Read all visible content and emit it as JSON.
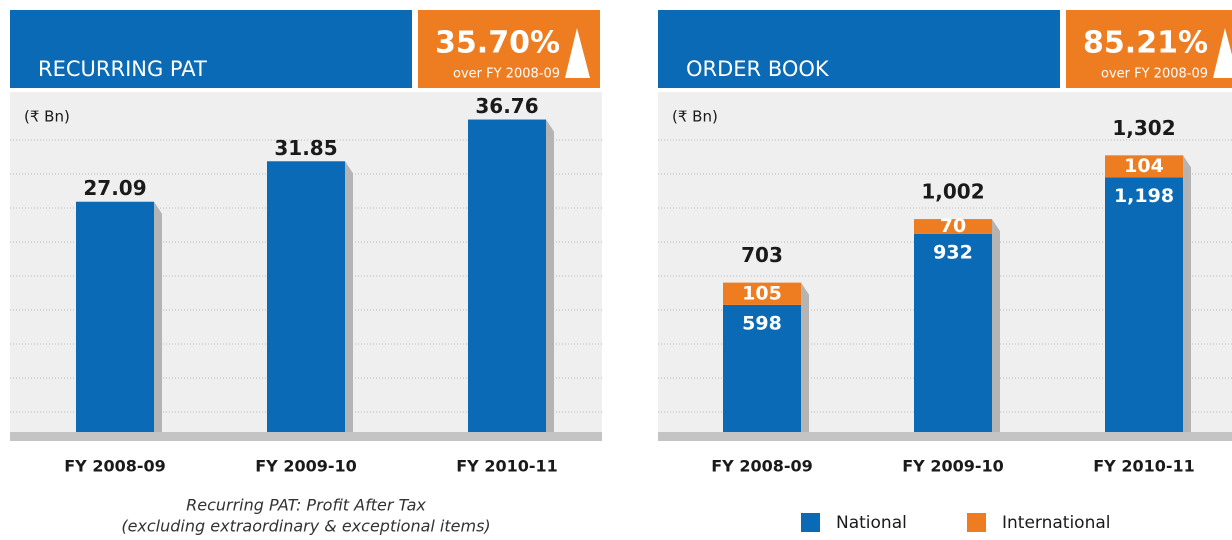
{
  "chart_data": [
    {
      "type": "bar",
      "title": "RECURRING PAT",
      "badge": "35.70%",
      "badge_caption": "over FY 2008-09",
      "unit": "(₹ Bn)",
      "categories": [
        "FY 2008-09",
        "FY 2009-10",
        "FY 2010-11"
      ],
      "values": [
        27.09,
        31.85,
        36.76
      ],
      "color": "#0a6ab6",
      "ylim": [
        0,
        40
      ],
      "grid": true,
      "note": [
        "Recurring PAT: Profit After Tax",
        "(excluding extraordinary & exceptional items)"
      ]
    },
    {
      "type": "stacked_bar",
      "title": "ORDER BOOK",
      "badge": "85.21%",
      "badge_caption": "over FY 2008-09",
      "unit": "(₹ Bn)",
      "categories": [
        "FY 2008-09",
        "FY 2009-10",
        "FY 2010-11"
      ],
      "series": [
        {
          "name": "National",
          "color": "#0a6ab6",
          "values": [
            598,
            932,
            1198
          ],
          "value_labels": [
            "598",
            "932",
            "1,198"
          ]
        },
        {
          "name": "International",
          "color": "#ee7d22",
          "values": [
            105,
            70,
            104
          ]
        }
      ],
      "totals": [
        703,
        1002,
        1302
      ],
      "total_labels": [
        "703",
        "1,002",
        "1,302"
      ],
      "ylim": [
        0,
        1600
      ],
      "grid": true,
      "legend": "bottom"
    }
  ]
}
